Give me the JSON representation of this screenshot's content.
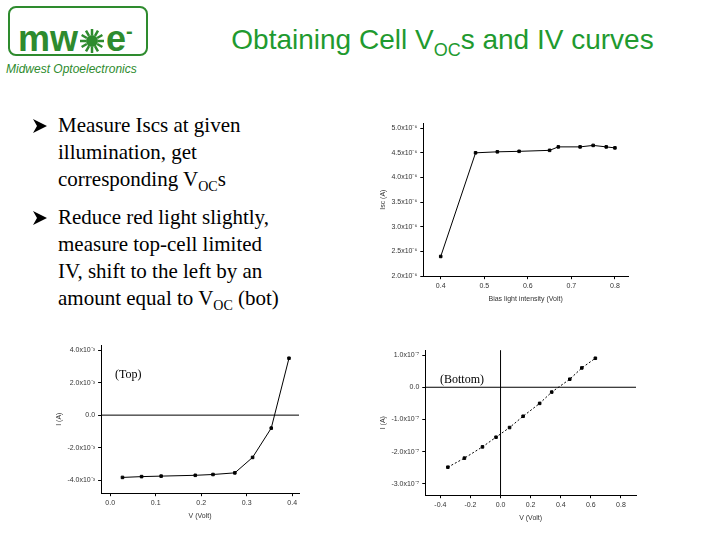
{
  "header": {
    "logo": {
      "left": "mw",
      "right": "e",
      "sup": "-",
      "name": "Midwest Optoelectronics"
    },
    "title": [
      {
        "text": "Obtaining Cell V"
      },
      {
        "text": "OC",
        "sub": true
      },
      {
        "text": "s and IV curves"
      }
    ]
  },
  "bullets": [
    [
      [
        {
          "text": "Measure Iscs at given"
        }
      ],
      [
        {
          "text": "illumination, get"
        }
      ],
      [
        {
          "text": "corresponding V"
        },
        {
          "text": "OC",
          "sub": true
        },
        {
          "text": "s"
        }
      ]
    ],
    [
      [
        {
          "text": "Reduce red light slightly,"
        }
      ],
      [
        {
          "text": "measure top-cell limited"
        }
      ],
      [
        {
          "text": "IV, shift to the left by an"
        }
      ],
      [
        {
          "text": "amount equal to V"
        },
        {
          "text": "OC",
          "sub": true
        },
        {
          "text": " (bot)"
        }
      ]
    ]
  ],
  "chart_data": [
    {
      "type": "line",
      "x_label": "Bias light intensity (Volt)",
      "y_label": "Isc (A)",
      "x": [
        0.4,
        0.48,
        0.53,
        0.58,
        0.65,
        0.67,
        0.72,
        0.75,
        0.78,
        0.8
      ],
      "values": [
        2.4e-06,
        4.5e-06,
        4.52e-06,
        4.53e-06,
        4.55e-06,
        4.62e-06,
        4.62e-06,
        4.65e-06,
        4.62e-06,
        4.6e-06
      ],
      "color": "#000000",
      "marker": "square",
      "line_style": "solid",
      "xlim": [
        0.36,
        0.83
      ],
      "xticks": [
        0.4,
        0.5,
        0.6,
        0.7,
        0.8
      ],
      "ylim": [
        2e-06,
        5.1e-06
      ],
      "yticks": [
        {
          "value": 2e-06,
          "label": "2.0x10⁻⁶"
        },
        {
          "value": 2.5e-06,
          "label": "2.5x10⁻⁶"
        },
        {
          "value": 3e-06,
          "label": "3.0x10⁻⁶"
        },
        {
          "value": 3.5e-06,
          "label": "3.5x10⁻⁶"
        },
        {
          "value": 4e-06,
          "label": "4.0x10⁻⁶"
        },
        {
          "value": 4.5e-06,
          "label": "4.5x10⁻⁶"
        },
        {
          "value": 5e-06,
          "label": "5.0x10⁻⁶"
        }
      ],
      "grid": false
    },
    {
      "type": "line",
      "x_label": "V (Volt)",
      "y_label": "I (A)",
      "annotation": "(Top)",
      "x": [
        0.027,
        0.069,
        0.112,
        0.187,
        0.226,
        0.274,
        0.313,
        0.354,
        0.393
      ],
      "values": [
        -0.00383,
        -0.00378,
        -0.00375,
        -0.0037,
        -0.00365,
        -0.00355,
        -0.0026,
        -0.0008,
        0.0035
      ],
      "color": "#000000",
      "marker": "square",
      "line_style": "solid",
      "xlim": [
        -0.02,
        0.415
      ],
      "xticks": [
        {
          "value": 0,
          "label": "0.0"
        },
        0.1,
        0.2,
        0.3,
        0.4
      ],
      "ylim": [
        -0.0048,
        0.0043
      ],
      "yticks": [
        {
          "value": -0.004,
          "label": "-4.0x10⁻³"
        },
        {
          "value": -0.002,
          "label": "-2.0x10⁻³"
        },
        {
          "value": 0,
          "label": "0.0"
        },
        {
          "value": 0.002,
          "label": "2.0x10⁻³"
        },
        {
          "value": 0.004,
          "label": "4.0x10⁻³"
        }
      ],
      "hlines": [
        0
      ],
      "grid": false
    },
    {
      "type": "line",
      "x_label": "V (Volt)",
      "y_label": "I (A)",
      "annotation": "(Bottom)",
      "x": [
        -0.35,
        -0.24,
        -0.12,
        -0.03,
        0.06,
        0.15,
        0.26,
        0.34,
        0.46,
        0.54,
        0.63
      ],
      "values": [
        -2.48e-07,
        -2.2e-07,
        -1.85e-07,
        -1.55e-07,
        -1.25e-07,
        -9e-08,
        -5e-08,
        -1.5e-08,
        2.5e-08,
        6e-08,
        9e-08
      ],
      "color": "#000000",
      "marker": "square",
      "line_style": "dotted",
      "xlim": [
        -0.5,
        0.9
      ],
      "xticks": [
        -0.4,
        -0.2,
        {
          "value": 0,
          "label": "0.0"
        },
        0.2,
        0.4,
        0.6,
        0.8
      ],
      "ylim": [
        -3.35e-07,
        1.15e-07
      ],
      "yticks": [
        {
          "value": -3e-07,
          "label": "-3.0x10⁻⁷"
        },
        {
          "value": -2e-07,
          "label": "-2.0x10⁻⁷"
        },
        {
          "value": -1e-07,
          "label": "-1.0x10⁻⁷"
        },
        {
          "value": 0,
          "label": "0.0"
        },
        {
          "value": 1e-07,
          "label": "1.0x10⁻⁷"
        }
      ],
      "hlines": [
        0
      ],
      "vlines": [
        0
      ],
      "grid": false
    }
  ]
}
